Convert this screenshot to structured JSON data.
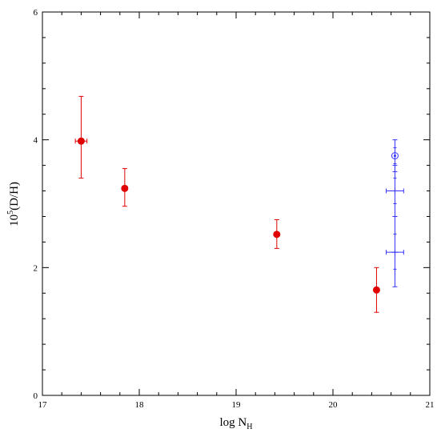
{
  "chart_data": {
    "type": "scatter",
    "title": "",
    "xlabel": {
      "main": "log  N",
      "sub": "H"
    },
    "ylabel": {
      "main": "10",
      "sup": "5",
      "rest": "(D/H)"
    },
    "xlim": [
      17,
      21
    ],
    "ylim": [
      0,
      6
    ],
    "x_ticks": [
      "17",
      "18",
      "19",
      "20",
      "21"
    ],
    "y_ticks": [
      "0",
      "2",
      "4",
      "6"
    ],
    "grid": false,
    "legend": "none",
    "series": [
      {
        "color": "#e00000",
        "marker": "filled-circle",
        "points": [
          {
            "x": 17.4,
            "y": 3.98,
            "y_low": 3.4,
            "y_high": 4.68,
            "x_err": 0.06
          },
          {
            "x": 17.85,
            "y": 3.24,
            "y_low": 2.96,
            "y_high": 3.55,
            "x_err": 0
          },
          {
            "x": 19.42,
            "y": 2.52,
            "y_low": 2.3,
            "y_high": 2.75,
            "x_err": 0
          },
          {
            "x": 20.45,
            "y": 1.65,
            "y_low": 1.3,
            "y_high": 2.0,
            "x_err": 0
          }
        ]
      },
      {
        "color": "#3333ff",
        "marker": "open-symbol",
        "points": [
          {
            "x": 20.64,
            "y": 3.75,
            "y_low": 3.5,
            "y_high": 4.0,
            "x_err": 0,
            "symbol": "target"
          },
          {
            "x": 20.64,
            "y": 3.2,
            "y_low": 2.8,
            "y_high": 3.6,
            "x_err": 0.09,
            "symbol": "plus"
          },
          {
            "x": 20.64,
            "y": 2.24,
            "y_low": 1.7,
            "y_high": 2.8,
            "x_err": 0.09,
            "symbol": "plus"
          }
        ]
      }
    ]
  }
}
